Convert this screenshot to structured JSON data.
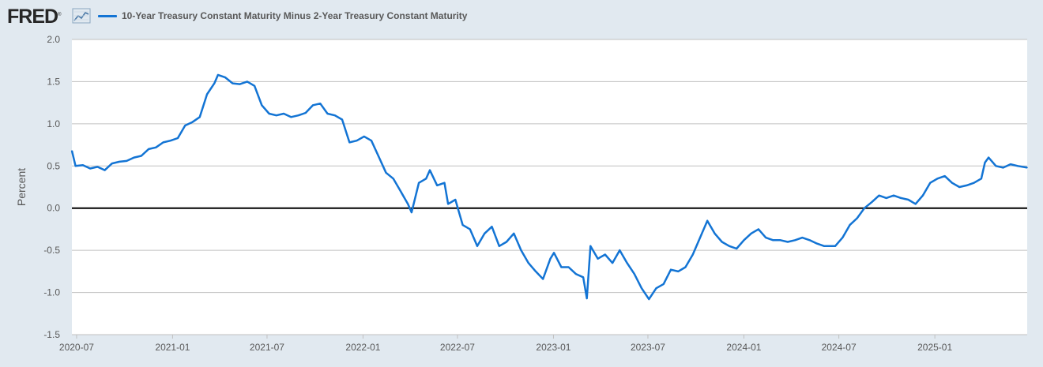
{
  "header": {
    "logo_text": "FRED",
    "logo_mark": "®",
    "graph_icon": "line-chart-icon"
  },
  "colors": {
    "background": "#e1e9f0",
    "plot_background": "#ffffff",
    "series": "#1374d4",
    "gridline": "#c0c0c0",
    "zero_line": "#000000",
    "text": "#595959"
  },
  "chart_data": {
    "type": "line",
    "title": "",
    "xlabel": "",
    "ylabel": "Percent",
    "ylim": [
      -1.5,
      2.0
    ],
    "yticks": [
      2.0,
      1.5,
      1.0,
      0.5,
      0.0,
      -0.5,
      -1.0,
      -1.5
    ],
    "ytick_labels": [
      "2.0",
      "1.5",
      "1.0",
      "0.5",
      "0.0",
      "-0.5",
      "-1.0",
      "-1.5"
    ],
    "xlim": [
      "2020-06-22",
      "2025-06-27"
    ],
    "xticks": [
      "2020-07-01",
      "2021-01-01",
      "2021-07-01",
      "2022-01-01",
      "2022-07-01",
      "2023-01-01",
      "2023-07-01",
      "2024-01-01",
      "2024-07-01",
      "2025-01-01"
    ],
    "xtick_labels": [
      "2020-07",
      "2021-01",
      "2021-07",
      "2022-01",
      "2022-07",
      "2023-01",
      "2023-07",
      "2024-01",
      "2024-07",
      "2025-01"
    ],
    "grid": true,
    "legend_position": "top-left",
    "series": [
      {
        "name": "10-Year Treasury Constant Maturity Minus 2-Year Treasury Constant Maturity",
        "points": [
          [
            "2020-06-22",
            0.68
          ],
          [
            "2020-06-29",
            0.5
          ],
          [
            "2020-07-13",
            0.51
          ],
          [
            "2020-07-27",
            0.47
          ],
          [
            "2020-08-10",
            0.49
          ],
          [
            "2020-08-24",
            0.45
          ],
          [
            "2020-09-07",
            0.53
          ],
          [
            "2020-09-21",
            0.55
          ],
          [
            "2020-10-05",
            0.56
          ],
          [
            "2020-10-19",
            0.6
          ],
          [
            "2020-11-02",
            0.62
          ],
          [
            "2020-11-16",
            0.7
          ],
          [
            "2020-11-30",
            0.72
          ],
          [
            "2020-12-14",
            0.78
          ],
          [
            "2020-12-28",
            0.8
          ],
          [
            "2021-01-11",
            0.83
          ],
          [
            "2021-01-25",
            0.98
          ],
          [
            "2021-02-08",
            1.02
          ],
          [
            "2021-02-22",
            1.08
          ],
          [
            "2021-03-08",
            1.35
          ],
          [
            "2021-03-22",
            1.48
          ],
          [
            "2021-03-29",
            1.58
          ],
          [
            "2021-04-12",
            1.55
          ],
          [
            "2021-04-26",
            1.48
          ],
          [
            "2021-05-10",
            1.47
          ],
          [
            "2021-05-24",
            1.5
          ],
          [
            "2021-06-07",
            1.45
          ],
          [
            "2021-06-21",
            1.22
          ],
          [
            "2021-07-05",
            1.12
          ],
          [
            "2021-07-19",
            1.1
          ],
          [
            "2021-08-02",
            1.12
          ],
          [
            "2021-08-16",
            1.08
          ],
          [
            "2021-08-30",
            1.1
          ],
          [
            "2021-09-13",
            1.13
          ],
          [
            "2021-09-27",
            1.22
          ],
          [
            "2021-10-11",
            1.24
          ],
          [
            "2021-10-25",
            1.12
          ],
          [
            "2021-11-08",
            1.1
          ],
          [
            "2021-11-22",
            1.05
          ],
          [
            "2021-12-06",
            0.78
          ],
          [
            "2021-12-20",
            0.8
          ],
          [
            "2022-01-03",
            0.85
          ],
          [
            "2022-01-17",
            0.8
          ],
          [
            "2022-01-31",
            0.61
          ],
          [
            "2022-02-14",
            0.42
          ],
          [
            "2022-02-28",
            0.35
          ],
          [
            "2022-03-14",
            0.2
          ],
          [
            "2022-03-28",
            0.05
          ],
          [
            "2022-04-04",
            -0.05
          ],
          [
            "2022-04-18",
            0.3
          ],
          [
            "2022-05-02",
            0.35
          ],
          [
            "2022-05-09",
            0.45
          ],
          [
            "2022-05-23",
            0.27
          ],
          [
            "2022-06-06",
            0.3
          ],
          [
            "2022-06-13",
            0.05
          ],
          [
            "2022-06-27",
            0.1
          ],
          [
            "2022-07-11",
            -0.2
          ],
          [
            "2022-07-25",
            -0.25
          ],
          [
            "2022-08-08",
            -0.45
          ],
          [
            "2022-08-22",
            -0.3
          ],
          [
            "2022-09-05",
            -0.22
          ],
          [
            "2022-09-19",
            -0.45
          ],
          [
            "2022-10-03",
            -0.4
          ],
          [
            "2022-10-17",
            -0.3
          ],
          [
            "2022-10-31",
            -0.5
          ],
          [
            "2022-11-14",
            -0.65
          ],
          [
            "2022-11-28",
            -0.75
          ],
          [
            "2022-12-12",
            -0.84
          ],
          [
            "2022-12-26",
            -0.6
          ],
          [
            "2023-01-02",
            -0.53
          ],
          [
            "2023-01-16",
            -0.7
          ],
          [
            "2023-01-30",
            -0.7
          ],
          [
            "2023-02-13",
            -0.78
          ],
          [
            "2023-02-27",
            -0.82
          ],
          [
            "2023-03-06",
            -1.07
          ],
          [
            "2023-03-13",
            -0.45
          ],
          [
            "2023-03-27",
            -0.6
          ],
          [
            "2023-04-10",
            -0.55
          ],
          [
            "2023-04-24",
            -0.65
          ],
          [
            "2023-05-08",
            -0.5
          ],
          [
            "2023-05-22",
            -0.65
          ],
          [
            "2023-06-05",
            -0.78
          ],
          [
            "2023-06-19",
            -0.95
          ],
          [
            "2023-07-03",
            -1.08
          ],
          [
            "2023-07-17",
            -0.95
          ],
          [
            "2023-07-31",
            -0.9
          ],
          [
            "2023-08-14",
            -0.73
          ],
          [
            "2023-08-28",
            -0.75
          ],
          [
            "2023-09-11",
            -0.7
          ],
          [
            "2023-09-25",
            -0.55
          ],
          [
            "2023-10-09",
            -0.35
          ],
          [
            "2023-10-23",
            -0.15
          ],
          [
            "2023-11-06",
            -0.3
          ],
          [
            "2023-11-20",
            -0.4
          ],
          [
            "2023-12-04",
            -0.45
          ],
          [
            "2023-12-18",
            -0.48
          ],
          [
            "2024-01-01",
            -0.38
          ],
          [
            "2024-01-15",
            -0.3
          ],
          [
            "2024-01-29",
            -0.25
          ],
          [
            "2024-02-12",
            -0.35
          ],
          [
            "2024-02-26",
            -0.38
          ],
          [
            "2024-03-11",
            -0.38
          ],
          [
            "2024-03-25",
            -0.4
          ],
          [
            "2024-04-08",
            -0.38
          ],
          [
            "2024-04-22",
            -0.35
          ],
          [
            "2024-05-06",
            -0.38
          ],
          [
            "2024-05-20",
            -0.42
          ],
          [
            "2024-06-03",
            -0.45
          ],
          [
            "2024-06-17",
            -0.45
          ],
          [
            "2024-06-24",
            -0.45
          ],
          [
            "2024-07-08",
            -0.35
          ],
          [
            "2024-07-22",
            -0.2
          ],
          [
            "2024-08-05",
            -0.12
          ],
          [
            "2024-08-19",
            0.0
          ],
          [
            "2024-09-02",
            0.07
          ],
          [
            "2024-09-16",
            0.15
          ],
          [
            "2024-09-30",
            0.12
          ],
          [
            "2024-10-14",
            0.15
          ],
          [
            "2024-10-28",
            0.12
          ],
          [
            "2024-11-11",
            0.1
          ],
          [
            "2024-11-25",
            0.05
          ],
          [
            "2024-12-09",
            0.15
          ],
          [
            "2024-12-23",
            0.3
          ],
          [
            "2025-01-06",
            0.35
          ],
          [
            "2025-01-20",
            0.38
          ],
          [
            "2025-02-03",
            0.3
          ],
          [
            "2025-02-17",
            0.25
          ],
          [
            "2025-03-03",
            0.27
          ],
          [
            "2025-03-17",
            0.3
          ],
          [
            "2025-03-31",
            0.35
          ],
          [
            "2025-04-07",
            0.54
          ],
          [
            "2025-04-14",
            0.6
          ],
          [
            "2025-04-28",
            0.5
          ],
          [
            "2025-05-12",
            0.48
          ],
          [
            "2025-05-26",
            0.52
          ],
          [
            "2025-06-09",
            0.5
          ],
          [
            "2025-06-27",
            0.48
          ]
        ]
      }
    ]
  }
}
